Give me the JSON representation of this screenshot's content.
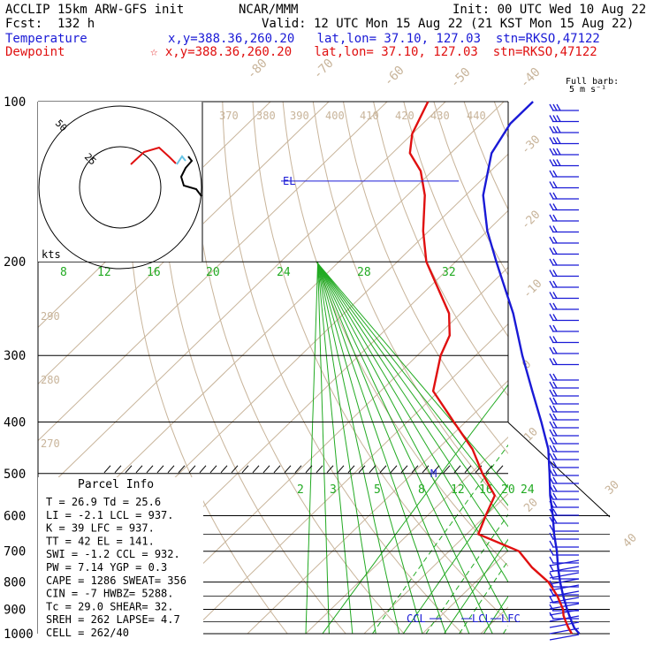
{
  "header": {
    "model": "ACCLIP 15km ARW-GFS init",
    "center": "NCAR/MMM",
    "init": "Init: 00 UTC Wed 10 Aug 22",
    "fcst": "Fcst:  132 h",
    "valid": "Valid: 12 UTC Mon 15 Aug 22 (21 KST Mon 15 Aug 22)",
    "temp_label": "Temperature",
    "dew_label": "Dewpoint",
    "temp_loc": "x,y=388.36,260.20   lat,lon= 37.10, 127.03  stn=RKSO,47122",
    "dew_loc": "☆ x,y=388.36,260.20   lat,lon= 37.10, 127.03  stn=RKSO,47122"
  },
  "colors": {
    "temperature": "#1a1ad6",
    "dewpoint": "#e01010",
    "isotherm": "#c8b49a",
    "mixing_ratio": "#22aa22",
    "barb": "#1a1ad6"
  },
  "barb_label": [
    "Full barb:",
    "5 m s⁻¹"
  ],
  "hodo": {
    "rings": [
      "25",
      "50"
    ],
    "units": "kts"
  },
  "annotations": {
    "el": "EL",
    "m": "M",
    "ccl": "CCL",
    "lcl": "LCL",
    "lfc": "LFC"
  },
  "parcel": {
    "title": "Parcel Info",
    "rows": [
      "T  =    26.9  Td =  25.6",
      "LI =    -2.1  LCL =  937.",
      "K  =     39  LFC =  937.",
      "TT =     42  EL  =  141.",
      "SWI =   -1.2  CCL =  932.",
      "PW  =   7.14  YGP =   0.3",
      "CAPE =  1286  SWEAT=  356",
      "CIN  =    -7  HWBZ= 5288.",
      "Tc  =   29.0  SHEAR=  32.",
      "SREH =   262  LAPSE=  4.7",
      "CELL = 262/40"
    ]
  },
  "chart_data": {
    "type": "line",
    "title": "",
    "y_axis": "pressure (hPa), log scale",
    "pressure_ticks": [
      "100",
      "200",
      "300",
      "400",
      "500",
      "600",
      "700",
      "800",
      "900",
      "1000"
    ],
    "isotherm_labels": [
      "-80",
      "-70",
      "-60",
      "-50",
      "-40",
      "-30",
      "-20",
      "-10",
      "0",
      "10",
      "20",
      "30",
      "40"
    ],
    "theta_labels": [
      "370",
      "380",
      "390",
      "400",
      "410",
      "420",
      "430",
      "440",
      "290",
      "280",
      "270"
    ],
    "mixing_ratio_labels_top": [
      "8",
      "12",
      "16",
      "20",
      "24",
      "28",
      "32"
    ],
    "mixing_ratio_labels_low": [
      "2",
      "3",
      "5",
      "8",
      "12",
      "16",
      "20",
      "24"
    ],
    "series": [
      {
        "name": "Temperature",
        "p": [
          1000,
          975,
          950,
          925,
          900,
          850,
          800,
          750,
          700,
          650,
          600,
          550,
          500,
          450,
          400,
          350,
          300,
          250,
          200,
          175,
          150,
          125,
          110,
          100
        ],
        "t": [
          26.9,
          25.0,
          23.5,
          22.0,
          20.5,
          17.5,
          14.5,
          11.5,
          8.5,
          5.0,
          1.5,
          -2.5,
          -6.5,
          -11.0,
          -17.0,
          -24.0,
          -32.0,
          -41.0,
          -53.0,
          -60.0,
          -67.0,
          -73.0,
          -75.0,
          -75.0
        ]
      },
      {
        "name": "Dewpoint",
        "p": [
          1000,
          975,
          950,
          925,
          900,
          850,
          800,
          750,
          700,
          650,
          600,
          550,
          500,
          450,
          400,
          350,
          300,
          275,
          250,
          200,
          175,
          150,
          135,
          125,
          115,
          100
        ],
        "t": [
          25.6,
          24.0,
          22.5,
          21.0,
          19.8,
          16.5,
          12.5,
          7.0,
          2.0,
          -8.0,
          -10.0,
          -12.0,
          -18.0,
          -24.0,
          -32.0,
          -41.0,
          -46.0,
          -48.0,
          -52.0,
          -65.0,
          -71.0,
          -77.0,
          -82.0,
          -87.0,
          -90.0,
          -93.0
        ]
      }
    ]
  }
}
